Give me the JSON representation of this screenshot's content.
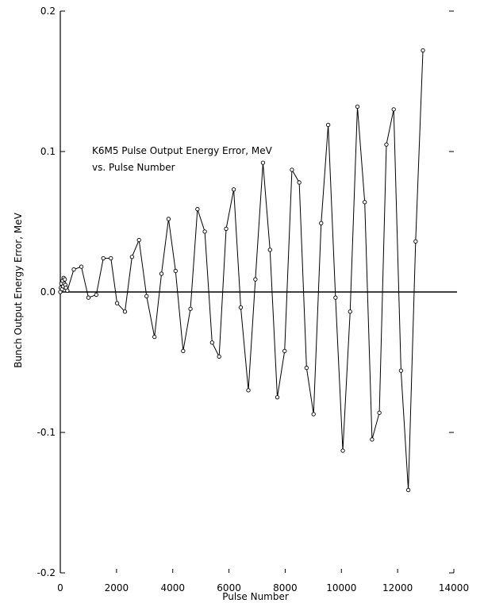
{
  "chart_data": {
    "type": "line",
    "title": "",
    "xlabel": "Pulse Number",
    "ylabel": "Bunch Output Energy Error, MeV",
    "xlim": [
      0,
      14000
    ],
    "ylim": [
      -0.2,
      0.2
    ],
    "x_ticks": [
      "0",
      "2000",
      "4000",
      "6000",
      "8000",
      "10000",
      "12000",
      "14000"
    ],
    "y_ticks": [
      "-0.2",
      "-0.1",
      "0.0",
      "0.1",
      "0.2"
    ],
    "grid": false,
    "annotation": [
      "K6M5 Pulse Output Energy Error, MeV",
      "vs. Pulse Number"
    ],
    "line_color": "#000000",
    "marker": "open-circle",
    "series": [
      {
        "points": [
          [
            0,
            0.0
          ],
          [
            20,
            0.003
          ],
          [
            40,
            0.006
          ],
          [
            60,
            0.002
          ],
          [
            80,
            0.008
          ],
          [
            100,
            0.004
          ],
          [
            120,
            0.01
          ],
          [
            140,
            0.006
          ],
          [
            160,
            0.009
          ],
          [
            180,
            0.005
          ],
          [
            200,
            0.003
          ],
          [
            250,
            0.001
          ],
          [
            480,
            0.016
          ],
          [
            750,
            0.018
          ],
          [
            1000,
            -0.004
          ],
          [
            1280,
            -0.002
          ],
          [
            1530,
            0.024
          ],
          [
            1800,
            0.024
          ],
          [
            2020,
            -0.008
          ],
          [
            2300,
            -0.014
          ],
          [
            2550,
            0.025
          ],
          [
            2800,
            0.037
          ],
          [
            3070,
            -0.003
          ],
          [
            3350,
            -0.032
          ],
          [
            3600,
            0.013
          ],
          [
            3850,
            0.052
          ],
          [
            4100,
            0.015
          ],
          [
            4370,
            -0.042
          ],
          [
            4630,
            -0.012
          ],
          [
            4880,
            0.059
          ],
          [
            5140,
            0.043
          ],
          [
            5400,
            -0.036
          ],
          [
            5650,
            -0.046
          ],
          [
            5900,
            0.045
          ],
          [
            6170,
            0.073
          ],
          [
            6420,
            -0.011
          ],
          [
            6690,
            -0.07
          ],
          [
            6940,
            0.009
          ],
          [
            7210,
            0.092
          ],
          [
            7460,
            0.03
          ],
          [
            7720,
            -0.075
          ],
          [
            7980,
            -0.042
          ],
          [
            8240,
            0.087
          ],
          [
            8500,
            0.078
          ],
          [
            8760,
            -0.054
          ],
          [
            9010,
            -0.087
          ],
          [
            9280,
            0.049
          ],
          [
            9530,
            0.119
          ],
          [
            9790,
            -0.004
          ],
          [
            10050,
            -0.113
          ],
          [
            10310,
            -0.014
          ],
          [
            10570,
            0.132
          ],
          [
            10830,
            0.064
          ],
          [
            11090,
            -0.105
          ],
          [
            11350,
            -0.086
          ],
          [
            11600,
            0.105
          ],
          [
            11860,
            0.13
          ],
          [
            12120,
            -0.056
          ],
          [
            12380,
            -0.141
          ],
          [
            12640,
            0.036
          ],
          [
            12900,
            0.172
          ]
        ]
      }
    ]
  }
}
